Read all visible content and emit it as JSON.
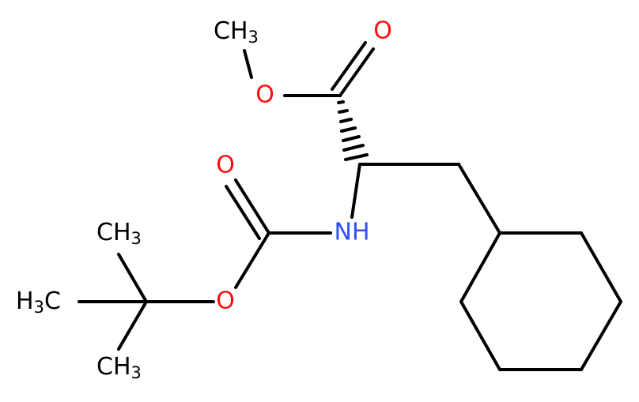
{
  "atoms": [
    {
      "parts": [
        "CH",
        "3"
      ]
    },
    {
      "parts": [
        "O"
      ]
    },
    {
      "parts": [
        "O"
      ]
    },
    {
      "parts": [
        "O"
      ]
    },
    {
      "parts": [
        "NH"
      ]
    },
    {
      "parts": [
        "O"
      ]
    },
    {
      "parts": [
        "CH",
        "3"
      ]
    },
    {
      "parts": [
        "H",
        "3",
        "C"
      ]
    },
    {
      "parts": [
        "CH",
        "3"
      ]
    }
  ]
}
